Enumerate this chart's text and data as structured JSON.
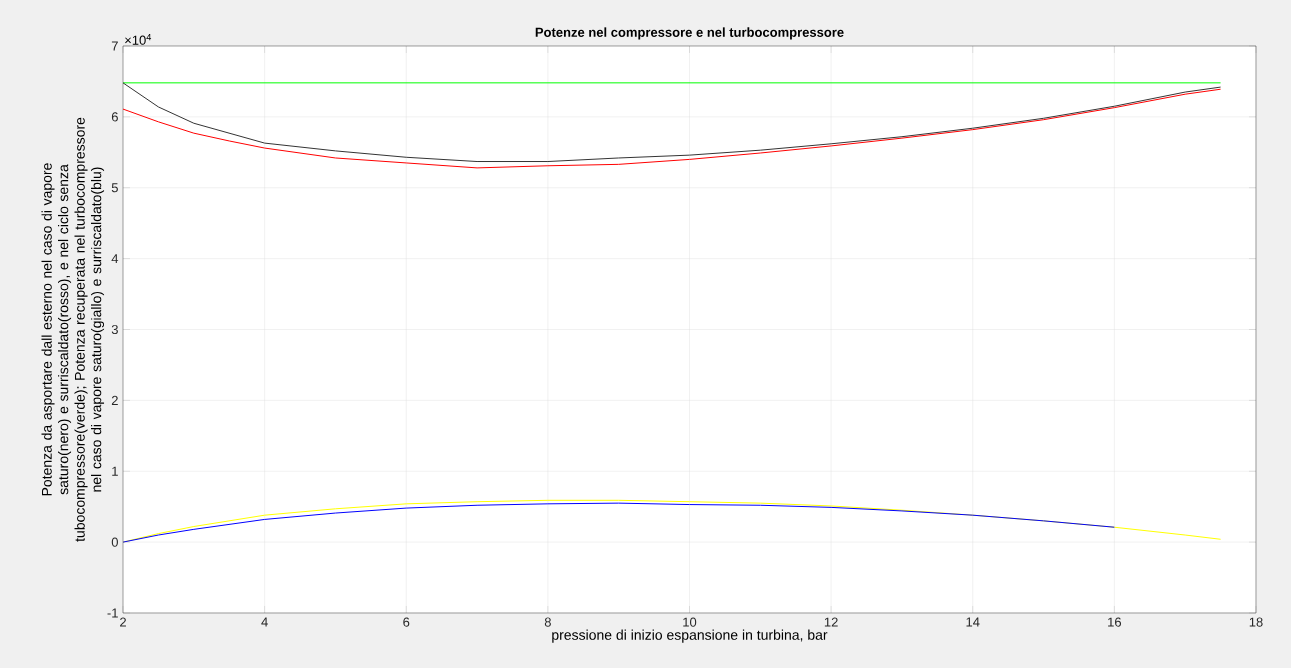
{
  "chart_data": {
    "type": "line",
    "title": "Potenze nel compressore e nel turbocompressore",
    "xlabel": "pressione di inizio espansione in turbina, bar",
    "ylabel": "Potenza da asportare dall esterno nel caso di vapore saturo(nero) e surriscaldato(rosso), e nel ciclo senza tubocompressore(verde); Potenza recuperata nel turbocompressore nel caso di vapore saturo(giallo) e surriscaldato(blu)",
    "annotations": [
      "×10$^{4}$"
    ],
    "xlim": [
      2,
      18
    ],
    "ylim": [
      -1,
      7
    ],
    "xticks": [
      2,
      4,
      6,
      8,
      10,
      12,
      14,
      16,
      18
    ],
    "yticks": [
      -1,
      0,
      1,
      2,
      3,
      4,
      5,
      6,
      7
    ],
    "grid": true,
    "series": [
      {
        "color": "#00ff00",
        "x": [
          2,
          17.5
        ],
        "values": [
          6.48,
          6.48
        ]
      },
      {
        "color": "#ff0000",
        "x": [
          2,
          2.5,
          3,
          3.5,
          4,
          5,
          6,
          7,
          8,
          9,
          10,
          11,
          12,
          13,
          14,
          15,
          16,
          17,
          17.5
        ],
        "values": [
          6.11,
          5.93,
          5.77,
          5.66,
          5.56,
          5.42,
          5.35,
          5.28,
          5.31,
          5.33,
          5.4,
          5.49,
          5.59,
          5.7,
          5.82,
          5.96,
          6.13,
          6.32,
          6.39
        ]
      },
      {
        "color": "#333333",
        "x": [
          2,
          2.5,
          3,
          3.5,
          4,
          5,
          6,
          7,
          8,
          9,
          10,
          11,
          12,
          13,
          14,
          15,
          16,
          17,
          17.5
        ],
        "values": [
          6.48,
          6.14,
          5.91,
          5.77,
          5.63,
          5.52,
          5.43,
          5.37,
          5.37,
          5.42,
          5.46,
          5.53,
          5.62,
          5.72,
          5.84,
          5.98,
          6.15,
          6.35,
          6.42
        ]
      },
      {
        "color": "#ffff00",
        "x": [
          2,
          2.5,
          3,
          4,
          5,
          6,
          7,
          8,
          9,
          10,
          11,
          12,
          13,
          14,
          15,
          16,
          17,
          17.5
        ],
        "values": [
          0,
          0.12,
          0.22,
          0.38,
          0.47,
          0.54,
          0.57,
          0.59,
          0.59,
          0.57,
          0.55,
          0.51,
          0.45,
          0.38,
          0.3,
          0.21,
          0.1,
          0.04
        ]
      },
      {
        "color": "#0000ff",
        "x": [
          2,
          2.5,
          3,
          4,
          5,
          6,
          7,
          8,
          9,
          10,
          11,
          12,
          13,
          14,
          15,
          16
        ],
        "values": [
          0,
          0.1,
          0.18,
          0.32,
          0.41,
          0.48,
          0.52,
          0.54,
          0.55,
          0.53,
          0.52,
          0.49,
          0.44,
          0.38,
          0.3,
          0.21
        ]
      }
    ]
  }
}
